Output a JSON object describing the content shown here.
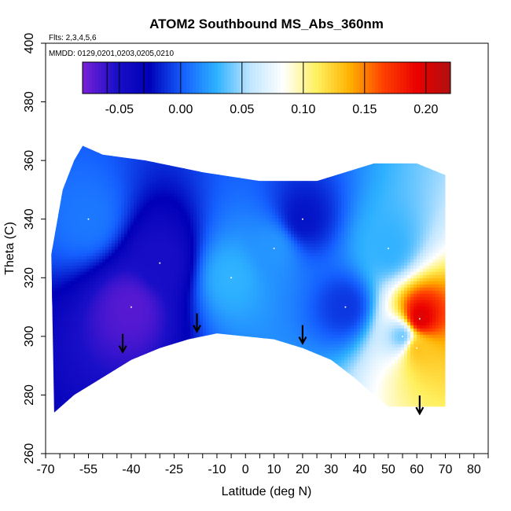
{
  "chart_data": {
    "type": "heatmap",
    "title": "ATOM2 Southbound MS_Abs_360nm",
    "annotations": [
      "Flts: 2,3,4,5,6",
      "MMDD: 0129,0201,0203,0205,0210"
    ],
    "xlabel": "Latitude (deg N)",
    "ylabel": "Theta (C)",
    "xlim": [
      -70,
      85
    ],
    "ylim": [
      260,
      400
    ],
    "x_ticks_labeled": [
      "-70",
      "-55",
      "-40",
      "-25",
      "-10",
      "0",
      "10",
      "20",
      "30",
      "40",
      "50",
      "60",
      "70",
      "80"
    ],
    "x_tick_values": [
      -70,
      -55,
      -40,
      -25,
      -10,
      0,
      10,
      20,
      30,
      40,
      50,
      60,
      70,
      80
    ],
    "x_minor_ticks": [
      -65,
      -60,
      -50,
      -45,
      -35,
      -30,
      -20,
      -15,
      -5,
      5,
      15,
      25,
      35,
      45,
      55,
      65,
      75,
      85
    ],
    "y_ticks": [
      "260",
      "280",
      "300",
      "320",
      "340",
      "360",
      "380",
      "400"
    ],
    "y_tick_values": [
      260,
      280,
      300,
      320,
      340,
      360,
      380,
      400
    ],
    "colorbar": {
      "range": [
        -0.08,
        0.22
      ],
      "tick_values": [
        -0.05,
        0.0,
        0.05,
        0.1,
        0.15,
        0.2
      ],
      "tick_labels": [
        "-0.05",
        "0.00",
        "0.05",
        "0.10",
        "0.15",
        "0.20"
      ],
      "division_values": [
        -0.06,
        -0.05,
        -0.03,
        0.0,
        0.05,
        0.1,
        0.15,
        0.2
      ],
      "colors": [
        "#7a1fd8",
        "#1a0fc8",
        "#0000b8",
        "#1560ff",
        "#2db0ff",
        "#bfe5ff",
        "#ffffff",
        "#fff060",
        "#ffb000",
        "#ff4000",
        "#ea0000",
        "#b01010"
      ]
    },
    "data_envelope": {
      "top_boundary": [
        [
          -68,
          328
        ],
        [
          -64,
          350
        ],
        [
          -60,
          360
        ],
        [
          -57,
          365
        ],
        [
          -50,
          362
        ],
        [
          -35,
          360
        ],
        [
          -15,
          356
        ],
        [
          5,
          353
        ],
        [
          25,
          353
        ],
        [
          45,
          359
        ],
        [
          60,
          359
        ],
        [
          70,
          355
        ]
      ],
      "bottom_boundary": [
        [
          70,
          276
        ],
        [
          60,
          276
        ],
        [
          50,
          276
        ],
        [
          45,
          280
        ],
        [
          38,
          286
        ],
        [
          30,
          292
        ],
        [
          20,
          296
        ],
        [
          10,
          299
        ],
        [
          0,
          300
        ],
        [
          -10,
          301
        ],
        [
          -20,
          299
        ],
        [
          -30,
          296
        ],
        [
          -40,
          292
        ],
        [
          -50,
          286
        ],
        [
          -60,
          280
        ],
        [
          -67,
          274
        ]
      ]
    },
    "features": [
      {
        "lat": -40,
        "theta": 310,
        "value": -0.07
      },
      {
        "lat": -30,
        "theta": 325,
        "value": -0.05
      },
      {
        "lat": -5,
        "theta": 320,
        "value": 0.03
      },
      {
        "lat": 10,
        "theta": 330,
        "value": 0.02
      },
      {
        "lat": 20,
        "theta": 340,
        "value": -0.02
      },
      {
        "lat": -55,
        "theta": 340,
        "value": 0.01
      },
      {
        "lat": 55,
        "theta": 300,
        "value": 0.04
      },
      {
        "lat": 61,
        "theta": 306,
        "value": 0.2
      },
      {
        "lat": 60,
        "theta": 296,
        "value": 0.13
      },
      {
        "lat": 50,
        "theta": 330,
        "value": 0.03
      },
      {
        "lat": 35,
        "theta": 310,
        "value": -0.01
      }
    ],
    "arrows": [
      {
        "lat": -43,
        "theta": 296
      },
      {
        "lat": -17,
        "theta": 303
      },
      {
        "lat": 20,
        "theta": 299
      },
      {
        "lat": 61,
        "theta": 275
      }
    ]
  }
}
